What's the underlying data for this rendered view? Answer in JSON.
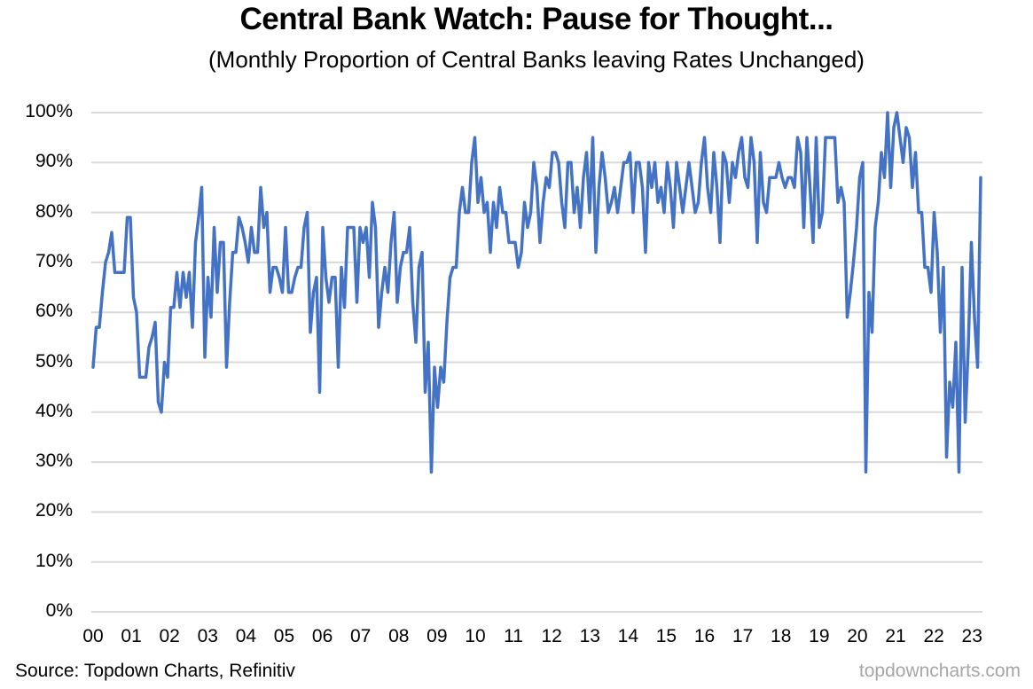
{
  "chart_data": {
    "type": "line",
    "title": "Central Bank Watch: Pause for Thought...",
    "subtitle": "(Monthly Proportion of Central Banks leaving Rates Unchanged)",
    "xlabel": "",
    "ylabel": "",
    "ylim": [
      0,
      100
    ],
    "y_ticks": [
      "0%",
      "10%",
      "20%",
      "30%",
      "40%",
      "50%",
      "60%",
      "70%",
      "80%",
      "90%",
      "100%"
    ],
    "x_ticks": [
      "00",
      "01",
      "02",
      "03",
      "04",
      "05",
      "06",
      "07",
      "08",
      "09",
      "10",
      "11",
      "12",
      "13",
      "14",
      "15",
      "16",
      "17",
      "18",
      "19",
      "20",
      "21",
      "22",
      "23"
    ],
    "grid": true,
    "legend": "none",
    "series": [
      {
        "name": "Proportion of central banks leaving rates unchanged (%)",
        "color": "#4472C4",
        "frequency": "monthly",
        "start": "2000-01",
        "values": [
          49,
          57,
          57,
          64,
          70,
          72,
          76,
          68,
          68,
          68,
          68,
          79,
          79,
          63,
          60,
          47,
          47,
          47,
          53,
          55,
          58,
          42,
          40,
          50,
          47,
          61,
          61,
          68,
          61,
          68,
          63,
          68,
          57,
          74,
          79,
          85,
          51,
          67,
          59,
          77,
          64,
          74,
          74,
          49,
          62,
          72,
          72,
          79,
          77,
          74,
          70,
          77,
          72,
          72,
          85,
          77,
          80,
          64,
          69,
          69,
          67,
          64,
          77,
          64,
          64,
          67,
          69,
          69,
          77,
          80,
          56,
          64,
          67,
          44,
          77,
          67,
          62,
          67,
          67,
          49,
          69,
          61,
          77,
          77,
          77,
          62,
          77,
          74,
          77,
          67,
          82,
          77,
          57,
          64,
          69,
          64,
          74,
          80,
          62,
          69,
          72,
          72,
          77,
          62,
          54,
          69,
          72,
          44,
          54,
          28,
          49,
          41,
          49,
          46,
          58,
          67,
          69,
          69,
          80,
          85,
          80,
          80,
          90,
          95,
          82,
          87,
          80,
          82,
          72,
          82,
          77,
          85,
          80,
          80,
          74,
          74,
          74,
          69,
          72,
          82,
          77,
          80,
          90,
          85,
          74,
          82,
          87,
          85,
          92,
          92,
          90,
          82,
          77,
          90,
          90,
          80,
          85,
          77,
          87,
          92,
          80,
          95,
          72,
          85,
          92,
          87,
          80,
          82,
          85,
          80,
          85,
          90,
          90,
          92,
          80,
          90,
          90,
          85,
          72,
          90,
          85,
          90,
          82,
          85,
          80,
          90,
          85,
          77,
          90,
          85,
          80,
          85,
          90,
          85,
          80,
          82,
          90,
          95,
          85,
          80,
          92,
          85,
          74,
          92,
          90,
          82,
          90,
          87,
          92,
          95,
          87,
          85,
          95,
          90,
          74,
          92,
          82,
          80,
          87,
          87,
          87,
          90,
          87,
          85,
          87,
          87,
          85,
          95,
          92,
          77,
          95,
          85,
          74,
          95,
          77,
          80,
          95,
          95,
          95,
          95,
          82,
          85,
          82,
          59,
          64,
          70,
          77,
          87,
          90,
          28,
          64,
          56,
          77,
          82,
          92,
          87,
          100,
          85,
          97,
          100,
          95,
          90,
          97,
          95,
          85,
          92,
          80,
          80,
          69,
          69,
          64,
          80,
          72,
          56,
          69,
          31,
          46,
          41,
          54,
          28,
          69,
          38,
          53,
          74,
          59,
          49,
          87
        ]
      }
    ],
    "source": "Source: Topdown Charts, Refinitiv",
    "watermark": "topdowncharts.com"
  },
  "header": {
    "title": "Central Bank Watch: Pause for Thought...",
    "subtitle": "(Monthly Proportion of Central Banks leaving Rates Unchanged)"
  },
  "footer": {
    "source": "Source: Topdown Charts, Refinitiv",
    "watermark": "topdowncharts.com"
  },
  "colors": {
    "line": "#4472C4",
    "grid": "#D9D9D9",
    "watermark": "#A6A6A6"
  }
}
